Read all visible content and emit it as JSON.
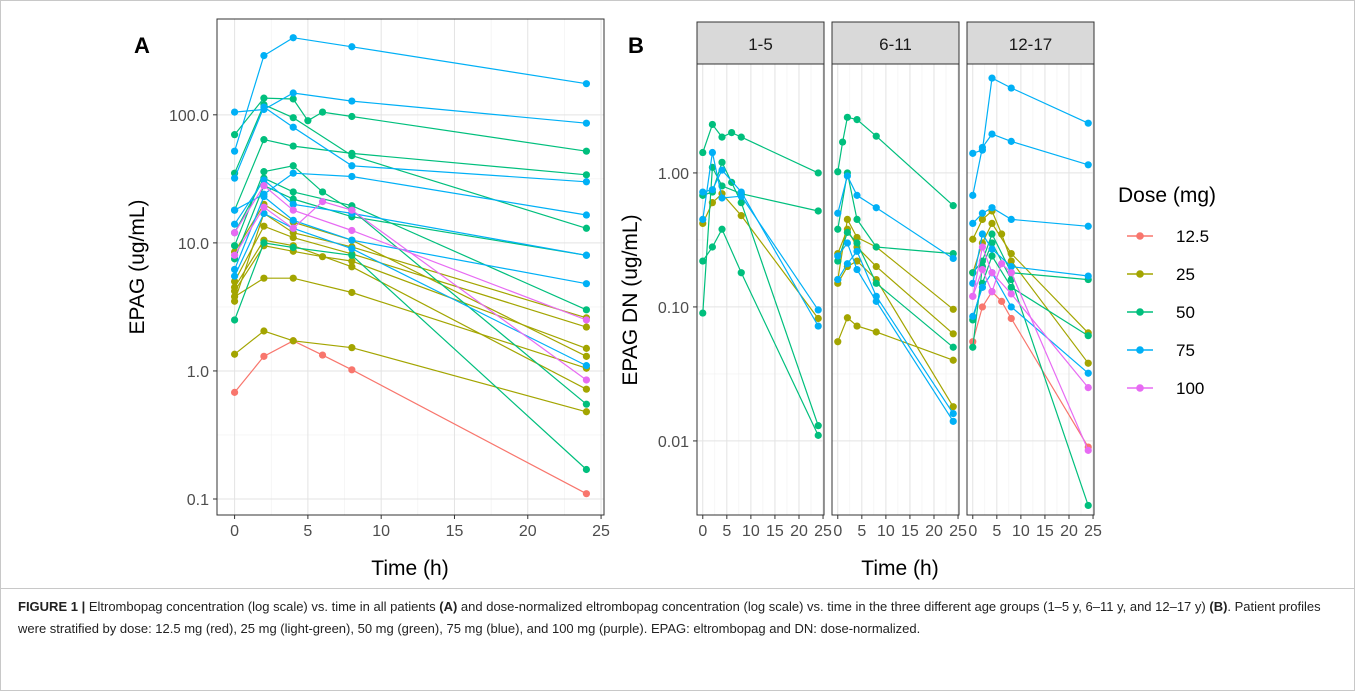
{
  "figure": {
    "caption_label": "FIGURE 1 |",
    "caption_parts": [
      {
        "text": " Eltrombopag concentration (log scale) vs. time in all patients ",
        "bold": false
      },
      {
        "text": "(A)",
        "bold": true
      },
      {
        "text": " and dose-normalized eltrombopag concentration (log scale) vs. time in the three different age groups (1–5 y, 6–11 y, and 12–17 y) ",
        "bold": false
      },
      {
        "text": "(B)",
        "bold": true
      },
      {
        "text": ". Patient profiles were stratified by dose: 12.5 mg (red), 25 mg (light-green), 50 mg (green), 75 mg (blue), and 100 mg (purple). EPAG: eltrombopag and DN: dose-normalized.",
        "bold": false
      }
    ]
  },
  "legend": {
    "title": "Dose (mg)",
    "placement": "right",
    "entries": [
      {
        "label": "12.5",
        "color": "#F8766D"
      },
      {
        "label": "25",
        "color": "#A3A500"
      },
      {
        "label": "50",
        "color": "#00BF7D"
      },
      {
        "label": "75",
        "color": "#00B0F6"
      },
      {
        "label": "100",
        "color": "#E76BF3"
      }
    ]
  },
  "chart_data": [
    {
      "panel": "A",
      "type": "line",
      "xlabel": "Time (h)",
      "ylabel": "EPAG (ug/mL)",
      "yscale": "log",
      "xlim": [
        -1.2,
        25.2
      ],
      "ylim": [
        0.075,
        560
      ],
      "xticks": [
        0,
        5,
        10,
        15,
        20,
        25
      ],
      "xtick_labels": [
        "0",
        "5",
        "10",
        "15",
        "20",
        "25"
      ],
      "yticks": [
        0.1,
        1,
        10,
        100
      ],
      "ytick_labels": [
        "0.1",
        "1.0",
        "10.0",
        "100.0"
      ],
      "grid": true,
      "series": [
        {
          "dose": "12.5",
          "x": [
            0,
            2,
            4,
            6,
            8,
            24
          ],
          "y": [
            0.68,
            1.3,
            1.72,
            1.33,
            1.02,
            0.11
          ]
        },
        {
          "dose": "25",
          "x": [
            0,
            2,
            4,
            8,
            24
          ],
          "y": [
            1.35,
            2.05,
            1.72,
            1.52,
            0.48
          ]
        },
        {
          "dose": "25",
          "x": [
            0,
            2,
            4,
            8,
            24
          ],
          "y": [
            3.8,
            5.3,
            5.3,
            4.1,
            1.05
          ]
        },
        {
          "dose": "25",
          "x": [
            0,
            2,
            4,
            6,
            8,
            24
          ],
          "y": [
            4.2,
            9.5,
            8.6,
            7.8,
            7.2,
            1.5
          ]
        },
        {
          "dose": "25",
          "x": [
            0,
            2,
            4,
            8,
            24
          ],
          "y": [
            5.0,
            13.5,
            11.0,
            8.2,
            2.2
          ]
        },
        {
          "dose": "25",
          "x": [
            0,
            2,
            4,
            8,
            24
          ],
          "y": [
            3.5,
            17.0,
            12.0,
            9.3,
            2.6
          ]
        },
        {
          "dose": "25",
          "x": [
            0,
            2,
            4,
            8,
            24
          ],
          "y": [
            8.5,
            20.0,
            14.5,
            10.5,
            1.3
          ]
        },
        {
          "dose": "25",
          "x": [
            0,
            2,
            4,
            8,
            24
          ],
          "y": [
            4.5,
            10.5,
            9.5,
            6.5,
            0.72
          ]
        },
        {
          "dose": "50",
          "x": [
            0,
            2,
            4,
            8,
            24
          ],
          "y": [
            2.5,
            10.0,
            9.2,
            8.0,
            0.17
          ]
        },
        {
          "dose": "50",
          "x": [
            0,
            2,
            4,
            6,
            8,
            24
          ],
          "y": [
            9.5,
            36.0,
            40.0,
            25.0,
            18.0,
            0.55
          ]
        },
        {
          "dose": "50",
          "x": [
            0,
            2,
            4,
            8,
            24
          ],
          "y": [
            18.0,
            64.0,
            57.0,
            50.0,
            34.0
          ]
        },
        {
          "dose": "50",
          "x": [
            0,
            2,
            4,
            5,
            6,
            8,
            24
          ],
          "y": [
            70.0,
            135.0,
            133.0,
            90.0,
            105.0,
            97.0,
            52.0
          ]
        },
        {
          "dose": "50",
          "x": [
            0,
            2,
            4,
            8,
            24
          ],
          "y": [
            35.0,
            120.0,
            95.0,
            48.0,
            13.0
          ]
        },
        {
          "dose": "50",
          "x": [
            0,
            2,
            4,
            8,
            24
          ],
          "y": [
            7.5,
            28.0,
            22.0,
            16.0,
            8.0
          ]
        },
        {
          "dose": "50",
          "x": [
            0,
            2,
            4,
            8,
            24
          ],
          "y": [
            12.0,
            32.0,
            25.0,
            19.5,
            3.0
          ]
        },
        {
          "dose": "75",
          "x": [
            0,
            2,
            4,
            8,
            24
          ],
          "y": [
            52.0,
            290.0,
            400.0,
            340.0,
            175.0
          ]
        },
        {
          "dose": "75",
          "x": [
            0,
            2,
            4,
            8,
            24
          ],
          "y": [
            105.0,
            110.0,
            148.0,
            128.0,
            86.0
          ]
        },
        {
          "dose": "75",
          "x": [
            0,
            2,
            4,
            8,
            24
          ],
          "y": [
            32.0,
            115.0,
            80.0,
            40.0,
            30.0
          ]
        },
        {
          "dose": "75",
          "x": [
            0,
            2,
            4,
            8,
            24
          ],
          "y": [
            18.0,
            24.0,
            35.0,
            33.0,
            16.5
          ]
        },
        {
          "dose": "75",
          "x": [
            0,
            2,
            4,
            8,
            24
          ],
          "y": [
            14.0,
            31.0,
            20.0,
            17.0,
            8.0
          ]
        },
        {
          "dose": "75",
          "x": [
            0,
            2,
            4,
            8,
            24
          ],
          "y": [
            6.2,
            23.0,
            15.0,
            10.5,
            4.8
          ]
        },
        {
          "dose": "75",
          "x": [
            0,
            2,
            4,
            8,
            24
          ],
          "y": [
            5.5,
            17.0,
            13.0,
            9.0,
            1.1
          ]
        },
        {
          "dose": "100",
          "x": [
            0,
            2,
            4,
            6,
            8,
            24
          ],
          "y": [
            8.0,
            19.0,
            13.0,
            21.0,
            18.0,
            0.85
          ]
        },
        {
          "dose": "100",
          "x": [
            0,
            2,
            4,
            8,
            24
          ],
          "y": [
            12.0,
            28.0,
            18.0,
            12.5,
            2.5
          ]
        }
      ]
    },
    {
      "panel": "B",
      "type": "line",
      "xlabel": "Time (h)",
      "ylabel": "EPAG DN (ug/mL)",
      "yscale": "log",
      "xlim": [
        -1.2,
        25.2
      ],
      "ylim": [
        0.0028,
        6.5
      ],
      "xticks": [
        0,
        5,
        10,
        15,
        20,
        25
      ],
      "xtick_labels": [
        "0",
        "5",
        "10",
        "15",
        "20",
        "25"
      ],
      "yticks": [
        0.01,
        0.1,
        1
      ],
      "ytick_labels": [
        "0.01",
        "0.10",
        "1.00"
      ],
      "grid": true,
      "facets": [
        {
          "label": "1-5",
          "series": [
            {
              "dose": "25",
              "x": [
                0,
                2,
                4,
                8,
                24
              ],
              "y": [
                0.42,
                0.6,
                0.7,
                0.48,
                0.082
              ]
            },
            {
              "dose": "50",
              "x": [
                0,
                2,
                4,
                6,
                8,
                24
              ],
              "y": [
                1.42,
                2.3,
                1.85,
                2.0,
                1.85,
                1.0
              ]
            },
            {
              "dose": "50",
              "x": [
                0,
                2,
                4,
                8,
                24
              ],
              "y": [
                0.09,
                1.1,
                0.8,
                0.7,
                0.52
              ]
            },
            {
              "dose": "50",
              "x": [
                0,
                2,
                4,
                8,
                24
              ],
              "y": [
                0.22,
                0.28,
                0.38,
                0.18,
                0.011
              ]
            },
            {
              "dose": "50",
              "x": [
                0,
                2,
                4,
                6,
                8,
                24
              ],
              "y": [
                0.68,
                0.72,
                1.2,
                0.85,
                0.6,
                0.013
              ]
            },
            {
              "dose": "75",
              "x": [
                0,
                2,
                4,
                8,
                24
              ],
              "y": [
                0.45,
                1.42,
                0.65,
                0.67,
                0.095
              ]
            },
            {
              "dose": "75",
              "x": [
                0,
                2,
                4,
                8,
                24
              ],
              "y": [
                0.72,
                0.75,
                1.05,
                0.72,
                0.072
              ]
            }
          ]
        },
        {
          "label": "6-11",
          "series": [
            {
              "dose": "25",
              "x": [
                0,
                2,
                4,
                8,
                24
              ],
              "y": [
                0.055,
                0.083,
                0.072,
                0.065,
                0.04
              ]
            },
            {
              "dose": "25",
              "x": [
                0,
                2,
                4,
                8,
                24
              ],
              "y": [
                0.16,
                0.45,
                0.33,
                0.28,
                0.096
              ]
            },
            {
              "dose": "25",
              "x": [
                0,
                2,
                4,
                8,
                24
              ],
              "y": [
                0.15,
                0.2,
                0.22,
                0.16,
                0.018
              ]
            },
            {
              "dose": "25",
              "x": [
                0,
                2,
                4,
                8,
                24
              ],
              "y": [
                0.25,
                0.38,
                0.28,
                0.2,
                0.063
              ]
            },
            {
              "dose": "50",
              "x": [
                0,
                1,
                2,
                4,
                8,
                24
              ],
              "y": [
                1.02,
                1.7,
                2.6,
                2.5,
                1.88,
                0.57
              ]
            },
            {
              "dose": "50",
              "x": [
                0,
                2,
                4,
                8,
                24
              ],
              "y": [
                0.38,
                1.0,
                0.45,
                0.28,
                0.25
              ]
            },
            {
              "dose": "50",
              "x": [
                0,
                2,
                4,
                8,
                24
              ],
              "y": [
                0.22,
                0.36,
                0.3,
                0.15,
                0.05
              ]
            },
            {
              "dose": "75",
              "x": [
                0,
                2,
                4,
                8,
                24
              ],
              "y": [
                0.5,
                0.95,
                0.68,
                0.55,
                0.23
              ]
            },
            {
              "dose": "75",
              "x": [
                0,
                2,
                4,
                8,
                24
              ],
              "y": [
                0.16,
                0.21,
                0.26,
                0.12,
                0.016
              ]
            },
            {
              "dose": "75",
              "x": [
                0,
                2,
                4,
                8,
                24
              ],
              "y": [
                0.24,
                0.3,
                0.19,
                0.11,
                0.014
              ]
            }
          ]
        },
        {
          "label": "12-17",
          "series": [
            {
              "dose": "12.5",
              "x": [
                0,
                2,
                4,
                6,
                8,
                24
              ],
              "y": [
                0.055,
                0.1,
                0.13,
                0.11,
                0.082,
                0.009
              ]
            },
            {
              "dose": "25",
              "x": [
                0,
                2,
                4,
                6,
                8,
                24
              ],
              "y": [
                0.32,
                0.45,
                0.52,
                0.35,
                0.22,
                0.038
              ]
            },
            {
              "dose": "25",
              "x": [
                0,
                2,
                4,
                8,
                24
              ],
              "y": [
                0.18,
                0.3,
                0.42,
                0.25,
                0.064
              ]
            },
            {
              "dose": "50",
              "x": [
                0,
                2,
                4,
                8,
                24
              ],
              "y": [
                0.05,
                0.2,
                0.3,
                0.16,
                0.0033
              ]
            },
            {
              "dose": "50",
              "x": [
                0,
                2,
                4,
                8,
                24
              ],
              "y": [
                0.18,
                0.22,
                0.35,
                0.18,
                0.16
              ]
            },
            {
              "dose": "50",
              "x": [
                0,
                2,
                4,
                8,
                24
              ],
              "y": [
                0.08,
                0.15,
                0.24,
                0.14,
                0.061
              ]
            },
            {
              "dose": "75",
              "x": [
                0,
                2,
                4,
                8,
                24
              ],
              "y": [
                1.4,
                1.48,
                5.1,
                4.3,
                2.35
              ]
            },
            {
              "dose": "75",
              "x": [
                0,
                2,
                4,
                8,
                24
              ],
              "y": [
                0.68,
                1.55,
                1.95,
                1.72,
                1.15
              ]
            },
            {
              "dose": "75",
              "x": [
                0,
                2,
                4,
                8,
                24
              ],
              "y": [
                0.42,
                0.5,
                0.55,
                0.45,
                0.4
              ]
            },
            {
              "dose": "75",
              "x": [
                0,
                2,
                4,
                8,
                24
              ],
              "y": [
                0.15,
                0.35,
                0.27,
                0.2,
                0.17
              ]
            },
            {
              "dose": "75",
              "x": [
                0,
                2,
                4,
                8,
                24
              ],
              "y": [
                0.085,
                0.14,
                0.18,
                0.1,
                0.032
              ]
            },
            {
              "dose": "100",
              "x": [
                0,
                2,
                4,
                6,
                8,
                24
              ],
              "y": [
                0.12,
                0.19,
                0.13,
                0.21,
                0.18,
                0.0085
              ]
            },
            {
              "dose": "100",
              "x": [
                0,
                2,
                4,
                8,
                24
              ],
              "y": [
                0.12,
                0.28,
                0.18,
                0.125,
                0.025
              ]
            }
          ]
        }
      ]
    }
  ],
  "panel_labels": {
    "a": "A",
    "b": "B"
  }
}
